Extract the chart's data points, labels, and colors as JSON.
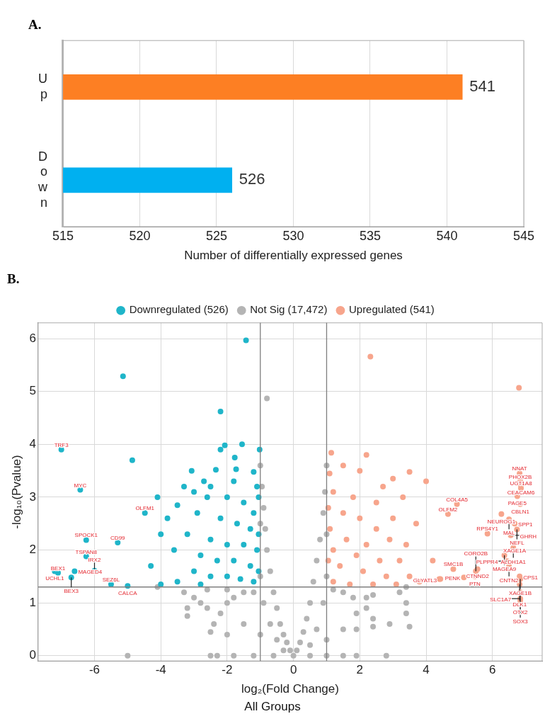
{
  "chart_data": [
    {
      "type": "bar",
      "title": "A.",
      "orientation": "horizontal",
      "categories": [
        "Up",
        "Down"
      ],
      "values": [
        541,
        526
      ],
      "colors": [
        "#fd7f23",
        "#00b0f0"
      ],
      "xlim": [
        515,
        545
      ],
      "xticks": [
        515,
        520,
        525,
        530,
        535,
        540,
        545
      ],
      "xlabel": "Number of differentially expressed genes",
      "grid": "x",
      "data_labels": true
    },
    {
      "type": "scatter",
      "title": "B.",
      "xlabel": "log₂(Fold Change)",
      "ylabel": "-log₁₀(Pvalue)",
      "marker": "circle",
      "legend": "top",
      "grid": true,
      "xlim": [
        -7.7,
        7.5
      ],
      "xticks": [
        -6,
        -4,
        -2,
        0,
        2,
        4,
        6
      ],
      "ylim": [
        -0.1,
        6.3
      ],
      "yticks": [
        0,
        1,
        2,
        3,
        4,
        5,
        6
      ],
      "series": [
        {
          "name": "Downregulated (526)",
          "color": "#1fb5c9",
          "x": [
            -1.43,
            -5.14,
            -2.2,
            -4.86,
            -2.07,
            -1.55,
            -1.02,
            -1.77,
            -3.07,
            -2.34,
            -1.73,
            -1.2,
            -2.2,
            -2.7,
            -3.3,
            -2.5,
            -3.0,
            -1.8,
            -1.1,
            -4.1,
            -3.5,
            -2.0,
            -2.6,
            -1.5,
            -1.2,
            -3.8,
            -2.9,
            -2.2,
            -1.7,
            -1.3,
            -4.0,
            -3.2,
            -2.5,
            -2.0,
            -1.5,
            -1.1,
            -3.6,
            -2.8,
            -2.3,
            -1.8,
            -1.3,
            -4.3,
            -3.0,
            -2.5,
            -2.0,
            -1.6,
            -1.2,
            -3.5,
            -4.0,
            -2.8,
            -1.05,
            -1.05,
            -1.05,
            -7.0,
            -6.43,
            -4.48,
            -6.25,
            -5.3,
            -6.25,
            -7.1,
            -7.2,
            -6.6,
            -6.7,
            -6.0,
            -5.5,
            -5.0
          ],
          "values": [
            5.97,
            5.29,
            4.62,
            3.7,
            3.98,
            4.0,
            3.9,
            3.75,
            3.5,
            3.52,
            3.53,
            3.48,
            3.9,
            3.3,
            3.2,
            3.2,
            3.1,
            3.3,
            3.2,
            3.0,
            2.85,
            3.0,
            3.0,
            2.9,
            2.7,
            2.6,
            2.7,
            2.6,
            2.5,
            2.4,
            2.3,
            2.3,
            2.2,
            2.1,
            2.1,
            2.0,
            2.0,
            1.9,
            1.8,
            1.8,
            1.7,
            1.7,
            1.6,
            1.5,
            1.5,
            1.45,
            1.4,
            1.4,
            1.35,
            1.35,
            1.6,
            2.3,
            3.0,
            3.9,
            3.14,
            2.7,
            2.19,
            2.14,
            1.88,
            1.57,
            1.6,
            1.6,
            1.48,
            1.61,
            1.35,
            1.32
          ]
        },
        {
          "name": "Not Sig (17,472)",
          "color": "#b4b4b4",
          "x": [
            -0.8,
            -1.0,
            -0.95,
            -0.9,
            -0.85,
            -0.8,
            -0.7,
            -0.6,
            -0.5,
            -0.4,
            -0.3,
            -0.2,
            -0.1,
            -1.0,
            -1.0,
            -0.9,
            -0.7,
            -0.5,
            -0.3,
            -1.2,
            -1.5,
            -1.8,
            -2.0,
            -2.2,
            -2.4,
            -2.5,
            -1.5,
            -1.0,
            -2.0,
            -3.3,
            -3.2,
            -3.0,
            -2.8,
            -2.6,
            -3.2,
            -2.3,
            -2.5,
            -1.8,
            -1.2,
            -0.6,
            -5.0,
            -4.1,
            -2.0,
            -2.6,
            1.0,
            0.95,
            0.9,
            0.8,
            0.7,
            0.6,
            0.5,
            0.4,
            0.3,
            0.2,
            0.1,
            1.0,
            1.0,
            0.9,
            0.7,
            1.2,
            1.5,
            1.8,
            1.9,
            1.9,
            1.5,
            1.0,
            0.5,
            2.2,
            2.4,
            2.2,
            2.4,
            2.4,
            2.9,
            3.4,
            3.4,
            3.4,
            3.5,
            3.2,
            0.5,
            1.0,
            1.5,
            1.9,
            2.8,
            0.0
          ],
          "values": [
            4.87,
            3.6,
            3.2,
            2.8,
            2.4,
            2.0,
            1.6,
            1.2,
            0.9,
            0.6,
            0.4,
            0.25,
            0.1,
            2.5,
            1.5,
            1.0,
            0.6,
            0.3,
            0.1,
            1.2,
            1.2,
            1.1,
            1.0,
            0.8,
            0.6,
            0.45,
            0.6,
            0.4,
            0.4,
            1.2,
            0.9,
            1.1,
            1.0,
            0.9,
            0.75,
            0.0,
            0.0,
            0.0,
            0.0,
            0.0,
            0.0,
            1.3,
            1.25,
            1.25,
            3.6,
            3.1,
            2.7,
            2.2,
            1.8,
            1.4,
            1.0,
            0.7,
            0.45,
            0.25,
            0.1,
            2.3,
            1.5,
            1.0,
            0.5,
            1.25,
            1.2,
            1.1,
            0.8,
            0.5,
            0.5,
            0.3,
            0.2,
            1.1,
            1.15,
            0.9,
            0.7,
            0.55,
            0.6,
            1.3,
            1.0,
            0.8,
            0.55,
            1.2,
            0.0,
            0.0,
            0.0,
            0.0,
            0.0,
            0.0
          ]
        },
        {
          "name": "Upregulated (541)",
          "color": "#f7a58c",
          "x": [
            2.32,
            6.8,
            1.14,
            2.2,
            1.09,
            3.5,
            3.0,
            4.0,
            1.5,
            2.0,
            2.7,
            1.8,
            1.2,
            3.3,
            2.5,
            1.5,
            2.0,
            3.0,
            3.7,
            1.1,
            2.5,
            1.6,
            2.2,
            2.9,
            3.4,
            1.2,
            1.9,
            2.6,
            3.2,
            4.2,
            1.4,
            2.1,
            2.8,
            3.5,
            4.4,
            1.2,
            1.7,
            2.4,
            3.1,
            3.8,
            1.05,
            1.05,
            4.93,
            4.66,
            6.82,
            6.84,
            6.86,
            6.86,
            6.75,
            6.84,
            6.27,
            6.5,
            6.67,
            6.74,
            5.85,
            6.55,
            6.67,
            6.63,
            6.36,
            6.44,
            6.5,
            5.55,
            5.5,
            4.82,
            5.14,
            5.47,
            4.43,
            6.82,
            6.84,
            6.82,
            6.84,
            6.84,
            6.84
          ],
          "values": [
            5.66,
            5.07,
            3.84,
            3.8,
            3.45,
            3.48,
            3.35,
            3.3,
            3.6,
            3.5,
            3.2,
            3.0,
            3.1,
            3.0,
            2.9,
            2.7,
            2.6,
            2.6,
            2.5,
            2.4,
            2.4,
            2.2,
            2.1,
            2.2,
            2.1,
            2.0,
            1.9,
            1.8,
            1.8,
            1.8,
            1.7,
            1.6,
            1.5,
            1.5,
            1.45,
            1.4,
            1.35,
            1.35,
            1.35,
            1.4,
            1.8,
            2.8,
            2.87,
            2.68,
            3.45,
            3.3,
            3.23,
            3.17,
            3.02,
            2.87,
            2.68,
            2.58,
            2.5,
            2.39,
            2.31,
            2.28,
            2.13,
            2.04,
            1.9,
            1.79,
            1.69,
            1.64,
            1.6,
            1.64,
            1.48,
            1.5,
            1.45,
            1.5,
            1.45,
            1.35,
            1.2,
            1.08,
            1.03
          ]
        }
      ],
      "ref_lines": [
        {
          "axis": "x",
          "value": -1,
          "color": "#7f7f7f"
        },
        {
          "axis": "x",
          "value": 1,
          "color": "#7f7f7f"
        },
        {
          "axis": "y",
          "value": 1.3,
          "color": "#7f7f7f"
        }
      ],
      "annotations": [
        {
          "text": "TRF3",
          "x": -7.0,
          "y": 3.9
        },
        {
          "text": "MYC",
          "x": -6.43,
          "y": 3.14
        },
        {
          "text": "OLFM1",
          "x": -4.48,
          "y": 2.7
        },
        {
          "text": "SPOCK1",
          "x": -6.25,
          "y": 2.19
        },
        {
          "text": "CD99",
          "x": -5.3,
          "y": 2.14
        },
        {
          "text": "TSPAN8",
          "x": -6.25,
          "y": 1.88
        },
        {
          "text": "BEX1",
          "x": -7.1,
          "y": 1.57
        },
        {
          "text": "UCHL1",
          "x": -7.2,
          "y": 1.6
        },
        {
          "text": "MAGED4",
          "x": -6.6,
          "y": 1.6
        },
        {
          "text": "BEX3",
          "x": -6.7,
          "y": 1.48
        },
        {
          "text": "IRX2",
          "x": -6.0,
          "y": 1.61
        },
        {
          "text": "SEZ6L",
          "x": -5.5,
          "y": 1.35
        },
        {
          "text": "CALCA",
          "x": -5.0,
          "y": 1.32
        },
        {
          "text": "COL4A5",
          "x": 4.93,
          "y": 2.87
        },
        {
          "text": "OLFM2",
          "x": 4.66,
          "y": 2.68
        },
        {
          "text": "NNAT",
          "x": 6.82,
          "y": 3.45
        },
        {
          "text": "PHOX2B",
          "x": 6.84,
          "y": 3.3
        },
        {
          "text": "CEACAM6",
          "x": 6.86,
          "y": 3.23
        },
        {
          "text": "UGT1A8",
          "x": 6.86,
          "y": 3.17
        },
        {
          "text": "PAGE5",
          "x": 6.75,
          "y": 3.02
        },
        {
          "text": "CBLN1",
          "x": 6.84,
          "y": 2.87
        },
        {
          "text": "NEUROG1",
          "x": 6.27,
          "y": 2.68
        },
        {
          "text": "MAL",
          "x": 6.5,
          "y": 2.58
        },
        {
          "text": "SPP1",
          "x": 6.67,
          "y": 2.5
        },
        {
          "text": "NEFL",
          "x": 6.74,
          "y": 2.39
        },
        {
          "text": "RPS4Y1",
          "x": 5.85,
          "y": 2.31
        },
        {
          "text": "GHRH",
          "x": 6.55,
          "y": 2.28
        },
        {
          "text": "XAGE1A",
          "x": 6.67,
          "y": 2.13
        },
        {
          "text": "ALDH1A1",
          "x": 6.63,
          "y": 2.04
        },
        {
          "text": "MAGEA9",
          "x": 6.36,
          "y": 1.9
        },
        {
          "text": "PLPPR4",
          "x": 6.44,
          "y": 1.79
        },
        {
          "text": "CNTN2",
          "x": 6.5,
          "y": 1.69
        },
        {
          "text": "CTNND2",
          "x": 5.55,
          "y": 1.64
        },
        {
          "text": "CORO2B",
          "x": 5.5,
          "y": 1.6
        },
        {
          "text": "SMC1B",
          "x": 4.82,
          "y": 1.64
        },
        {
          "text": "PENK",
          "x": 5.14,
          "y": 1.48
        },
        {
          "text": "PTN",
          "x": 5.47,
          "y": 1.5
        },
        {
          "text": "GLYATL3",
          "x": 4.43,
          "y": 1.45
        },
        {
          "text": "CPS1",
          "x": 6.82,
          "y": 1.5
        },
        {
          "text": "XAGE1B",
          "x": 6.84,
          "y": 1.45
        },
        {
          "text": "DLK1",
          "x": 6.82,
          "y": 1.35
        },
        {
          "text": "OTX2",
          "x": 6.84,
          "y": 1.2
        },
        {
          "text": "SLC1A7",
          "x": 6.84,
          "y": 1.08
        },
        {
          "text": "SOX3",
          "x": 6.84,
          "y": 1.03
        },
        "All Groups"
      ]
    }
  ]
}
